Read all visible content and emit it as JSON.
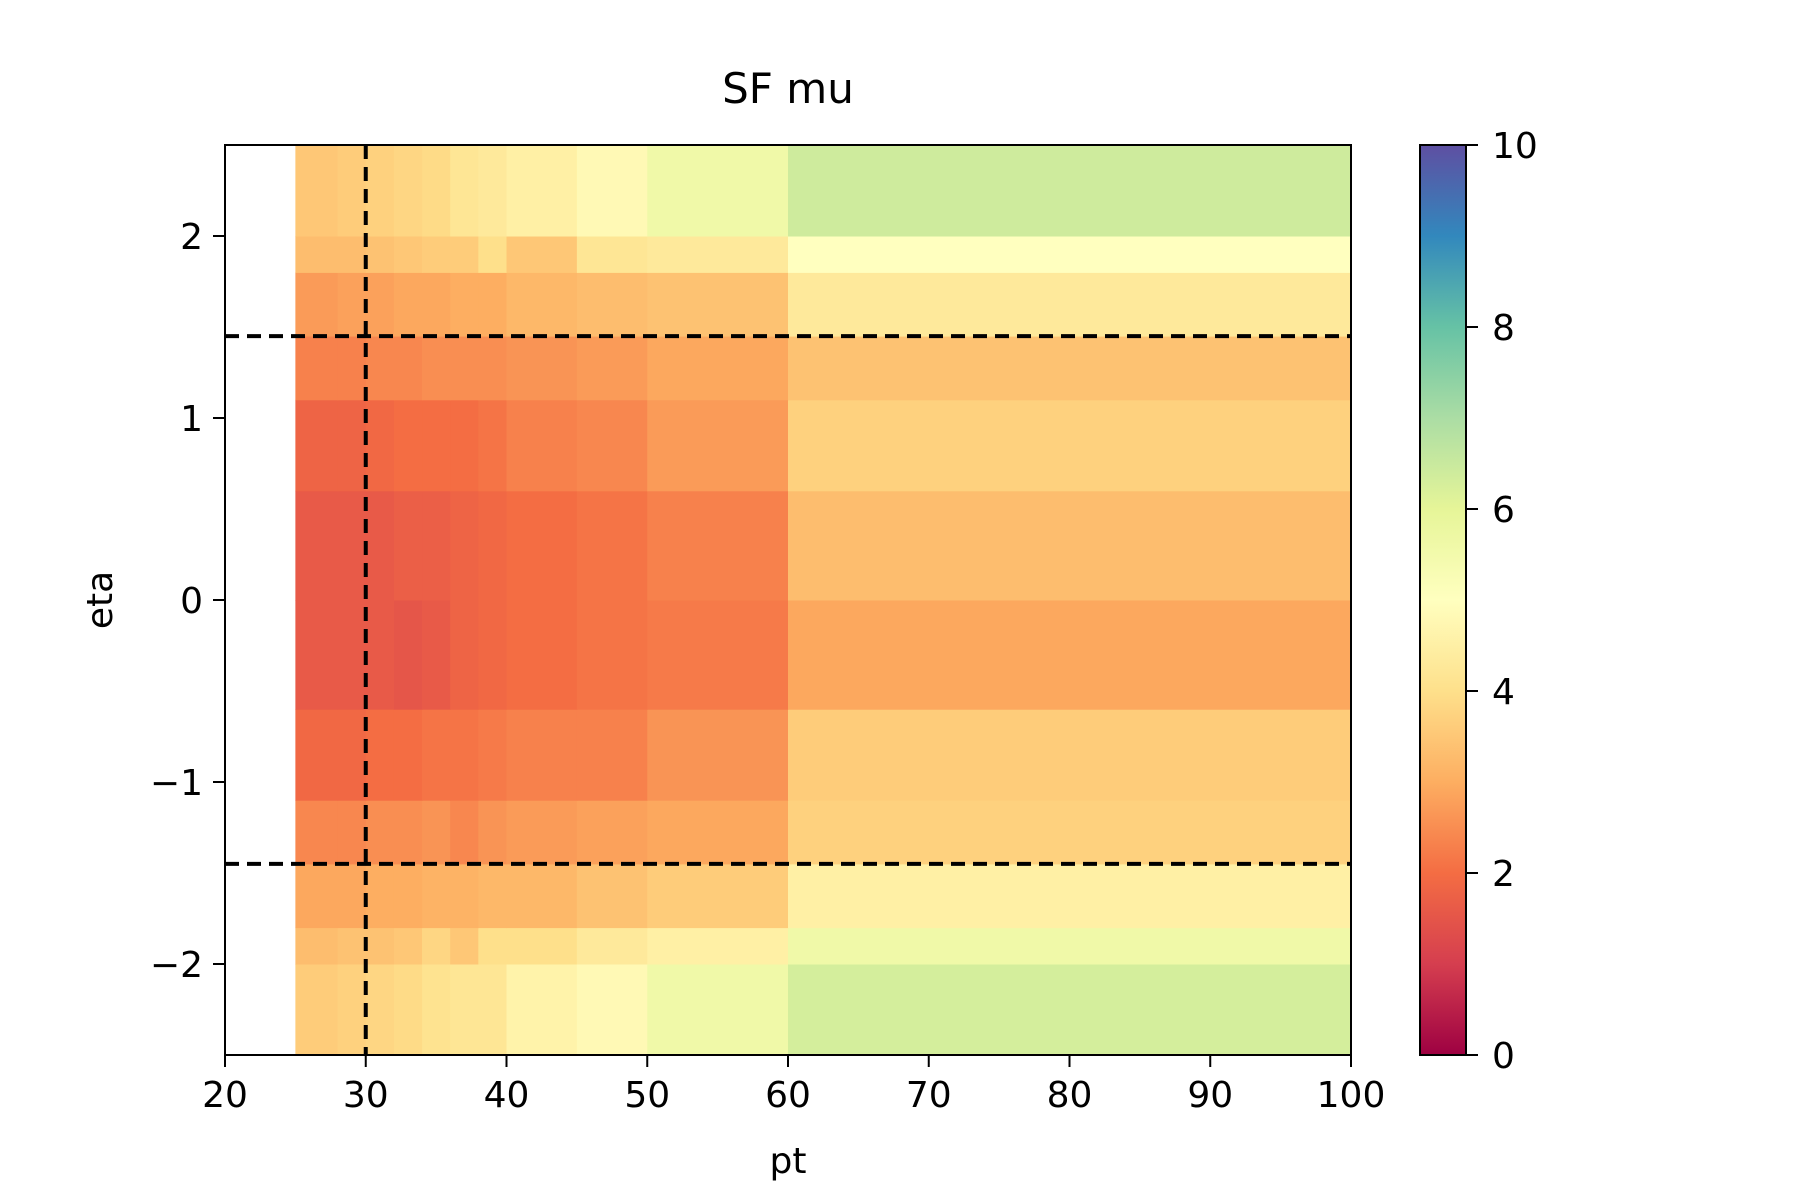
{
  "chart_data": {
    "type": "heatmap",
    "title": "SF mu",
    "xlabel": "pt",
    "ylabel": "eta",
    "xlim": [
      20,
      100
    ],
    "ylim": [
      -2.5,
      2.5
    ],
    "xticks": [
      20,
      30,
      40,
      50,
      60,
      70,
      80,
      90,
      100
    ],
    "xtick_labels": [
      "20",
      "30",
      "40",
      "50",
      "60",
      "70",
      "80",
      "90",
      "100"
    ],
    "yticks": [
      -2,
      -1,
      0,
      1,
      2
    ],
    "ytick_labels": [
      "−2",
      "−1",
      "0",
      "1",
      "2"
    ],
    "colorbar": {
      "colormap": "Spectral",
      "range": [
        0,
        10
      ],
      "ticks": [
        0,
        2,
        4,
        6,
        8,
        10
      ],
      "tick_labels": [
        "0",
        "2",
        "4",
        "6",
        "8",
        "10"
      ]
    },
    "pt_edges": [
      25,
      28,
      30,
      32,
      34,
      36,
      38,
      40,
      45,
      50,
      60,
      100
    ],
    "eta_edges": [
      -2.5,
      -2.0,
      -1.8,
      -1.45,
      -1.1,
      -0.6,
      0.0,
      0.6,
      1.1,
      1.45,
      1.8,
      2.0,
      2.5
    ],
    "values": [
      [
        3.6,
        3.7,
        3.8,
        3.9,
        4.1,
        4.2,
        4.2,
        4.6,
        4.8,
        5.6,
        6.3
      ],
      [
        3.3,
        3.4,
        3.4,
        3.5,
        3.8,
        3.5,
        4.0,
        4.0,
        4.3,
        4.5,
        5.6
      ],
      [
        2.9,
        2.9,
        3.0,
        3.0,
        3.1,
        3.1,
        3.2,
        3.2,
        3.4,
        3.6,
        4.5
      ],
      [
        2.4,
        2.4,
        2.5,
        2.5,
        2.6,
        2.4,
        2.6,
        2.7,
        2.8,
        2.9,
        3.7
      ],
      [
        1.9,
        1.9,
        2.0,
        2.0,
        2.1,
        2.1,
        2.2,
        2.3,
        2.3,
        2.6,
        3.6
      ],
      [
        1.6,
        1.6,
        1.6,
        1.5,
        1.6,
        1.8,
        1.9,
        2.0,
        2.1,
        2.2,
        2.9
      ],
      [
        1.6,
        1.6,
        1.6,
        1.7,
        1.7,
        1.8,
        1.9,
        2.0,
        2.1,
        2.3,
        3.3
      ],
      [
        1.8,
        1.8,
        1.9,
        2.0,
        2.0,
        2.0,
        2.1,
        2.3,
        2.4,
        2.7,
        3.7
      ],
      [
        2.3,
        2.3,
        2.4,
        2.4,
        2.5,
        2.5,
        2.5,
        2.6,
        2.7,
        2.9,
        3.4
      ],
      [
        2.7,
        2.8,
        2.8,
        2.9,
        2.9,
        3.0,
        3.0,
        3.2,
        3.3,
        3.4,
        4.3
      ],
      [
        3.3,
        3.3,
        3.4,
        3.5,
        3.6,
        3.6,
        4.0,
        3.5,
        4.2,
        4.3,
        5.0
      ],
      [
        3.5,
        3.6,
        3.7,
        3.8,
        3.9,
        4.2,
        4.3,
        4.5,
        4.8,
        5.6,
        6.4
      ]
    ],
    "reference_lines": {
      "vertical_x": [
        30
      ],
      "horizontal_y": [
        -1.45,
        1.45
      ],
      "style": "dashed",
      "color": "#000000"
    },
    "grid": false
  }
}
